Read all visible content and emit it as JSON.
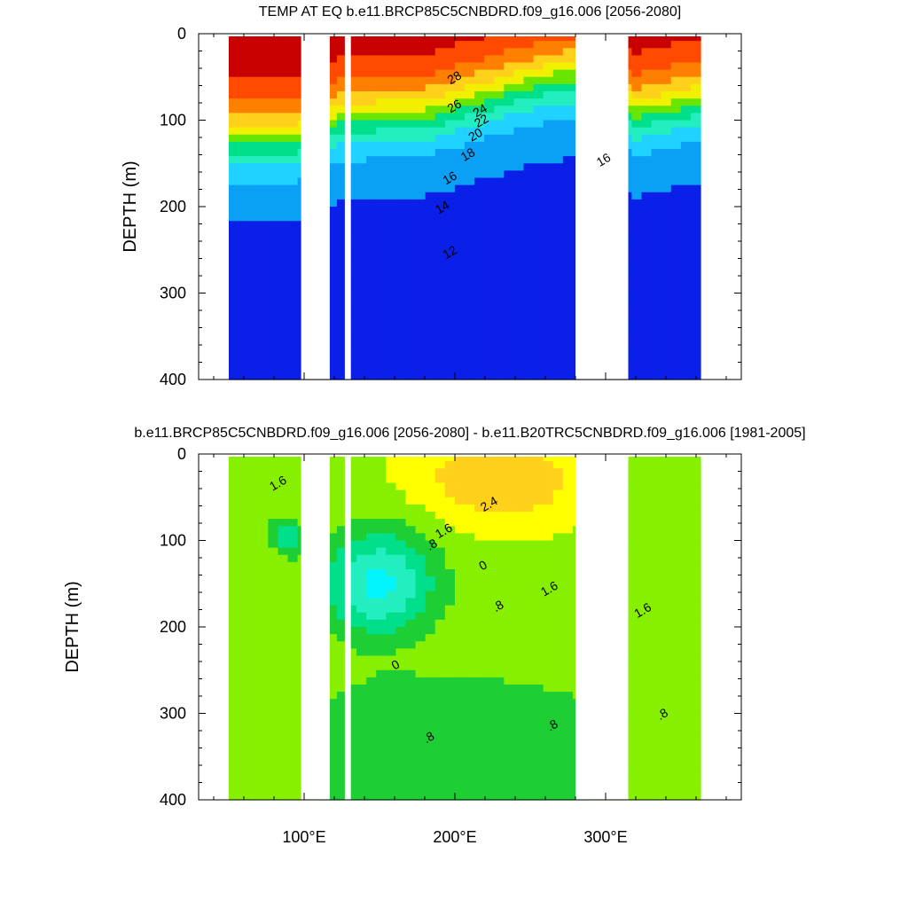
{
  "chart_data": [
    {
      "type": "heatmap",
      "title": "TEMP AT EQ b.e11.BRCP85C5CNBDRD.f09_g16.006 [2056-2080]",
      "xlabel": "",
      "ylabel": "DEPTH (m)",
      "xlim": [
        30,
        390
      ],
      "ylim": [
        400,
        0
      ],
      "y_ticks": [
        "0",
        "100",
        "200",
        "300",
        "400"
      ],
      "x_ticks": [],
      "grid": false,
      "levels": [
        10,
        12,
        14,
        16,
        18,
        20,
        22,
        24,
        26,
        28
      ],
      "colors": [
        "#0a1fe8",
        "#0a5cf5",
        "#0aa0f5",
        "#1fd2ff",
        "#00f5ff",
        "#22eec0",
        "#00e08a",
        "#1dcf34",
        "#69e600",
        "#b4ee00",
        "#f0f000",
        "#ffd11a",
        "#ffaa33",
        "#ff8000",
        "#ff4a00",
        "#f00000",
        "#c80000"
      ],
      "field": {
        "surface_value": 29.6,
        "deep_value": 9.5,
        "thermocline_depth_by_lon": [
          [
            40,
            120
          ],
          [
            95,
            120
          ],
          [
            125,
            95
          ],
          [
            180,
            90
          ],
          [
            220,
            70
          ],
          [
            260,
            50
          ],
          [
            280,
            45
          ],
          [
            320,
            90
          ],
          [
            370,
            70
          ]
        ]
      },
      "contour_labels": [
        {
          "text": "28",
          "lon": 201,
          "depth": 55
        },
        {
          "text": "26",
          "lon": 201,
          "depth": 88
        },
        {
          "text": "24",
          "lon": 218,
          "depth": 93
        },
        {
          "text": "22",
          "lon": 219,
          "depth": 105
        },
        {
          "text": "20",
          "lon": 215,
          "depth": 121
        },
        {
          "text": "18",
          "lon": 210,
          "depth": 144
        },
        {
          "text": "16",
          "lon": 198,
          "depth": 171
        },
        {
          "text": "14",
          "lon": 193,
          "depth": 205
        },
        {
          "text": "12",
          "lon": 198,
          "depth": 257
        },
        {
          "text": "16",
          "lon": 300,
          "depth": 150
        }
      ],
      "land_gaps_lon": [
        [
          98,
          117
        ],
        [
          127,
          131
        ],
        [
          280,
          315
        ]
      ]
    },
    {
      "type": "heatmap",
      "title": "b.e11.BRCP85C5CNBDRD.f09_g16.006 [2056-2080] - b.e11.B20TRC5CNBDRD.f09_g16.006 [1981-2005]",
      "xlabel": "",
      "ylabel": "DEPTH (m)",
      "xlim": [
        30,
        390
      ],
      "ylim": [
        400,
        0
      ],
      "y_ticks": [
        "0",
        "100",
        "200",
        "300",
        "400"
      ],
      "x_ticks": [
        "100°E",
        "200°E",
        "300°E"
      ],
      "x_tick_values": [
        100,
        200,
        300
      ],
      "grid": false,
      "levels": [
        0,
        0.4,
        0.8,
        1.2,
        1.6,
        2.0,
        2.4
      ],
      "colors": [
        "#00f5ff",
        "#22eec0",
        "#00e08a",
        "#1dcf34",
        "#86f000",
        "#ffff00",
        "#ffd11a",
        "#ffaa33"
      ],
      "field": {
        "default_value": 1.5,
        "deep_value": 0.9,
        "cool_anomaly_center": [
          150,
          150
        ],
        "warm_surface_center": [
          230,
          30
        ]
      },
      "contour_labels": [
        {
          "text": "1.6",
          "lon": 84,
          "depth": 38
        },
        {
          "text": "2.4",
          "lon": 224,
          "depth": 62
        },
        {
          "text": "1.6",
          "lon": 194,
          "depth": 93
        },
        {
          "text": ".8",
          "lon": 186,
          "depth": 109
        },
        {
          "text": "0",
          "lon": 220,
          "depth": 133
        },
        {
          "text": "1.6",
          "lon": 264,
          "depth": 160
        },
        {
          "text": ".8",
          "lon": 230,
          "depth": 180
        },
        {
          "text": "1.6",
          "lon": 326,
          "depth": 185
        },
        {
          "text": "0",
          "lon": 162,
          "depth": 248
        },
        {
          "text": ".8",
          "lon": 184,
          "depth": 332
        },
        {
          "text": ".8",
          "lon": 266,
          "depth": 318
        },
        {
          "text": ".8",
          "lon": 339,
          "depth": 305
        }
      ],
      "land_gaps_lon": [
        [
          98,
          117
        ],
        [
          127,
          131
        ],
        [
          280,
          315
        ]
      ]
    }
  ]
}
